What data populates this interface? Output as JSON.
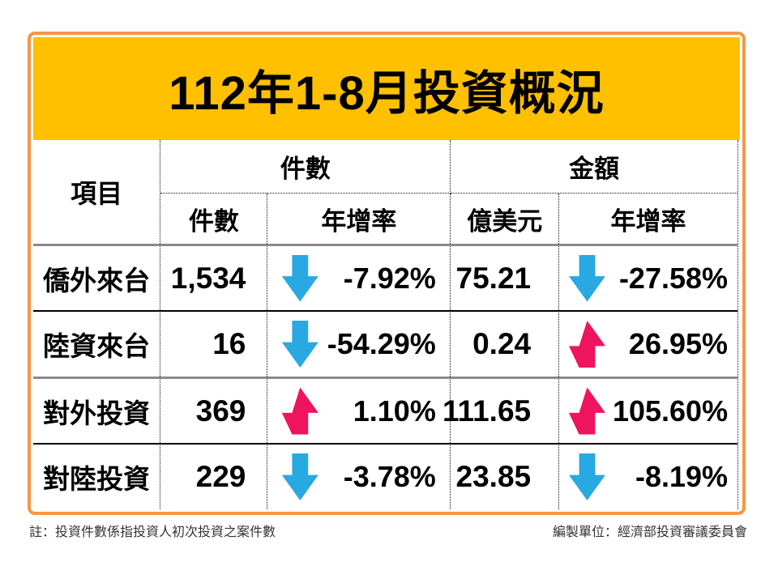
{
  "title": "112年1-8月投資概況",
  "colors": {
    "banner_gold": "#FFC000",
    "frame_orange": "#F79646",
    "arrow_up_pink": "#EF145E",
    "arrow_down_blue": "#29A9E1",
    "separator_gray": "#8A8A8A"
  },
  "table": {
    "item_header": "項目",
    "group_headers": {
      "count": "件數",
      "amount": "金額"
    },
    "sub_headers": {
      "count": "件數",
      "count_yoy": "年增率",
      "amount_unit": "億美元",
      "amount_yoy": "年增率"
    },
    "rows": [
      {
        "item": "僑外來台",
        "count": "1,534",
        "count_trend": "down",
        "count_yoy": "-7.92%",
        "amount": "75.21",
        "amount_trend": "down",
        "amount_yoy": "-27.58%"
      },
      {
        "item": "陸資來台",
        "count": "16",
        "count_trend": "down",
        "count_yoy": "-54.29%",
        "amount": "0.24",
        "amount_trend": "up",
        "amount_yoy": "26.95%"
      },
      {
        "item": "對外投資",
        "count": "369",
        "count_trend": "up",
        "count_yoy": "1.10%",
        "amount": "111.65",
        "amount_trend": "up",
        "amount_yoy": "105.60%"
      },
      {
        "item": "對陸投資",
        "count": "229",
        "count_trend": "down",
        "count_yoy": "-3.78%",
        "amount": "23.85",
        "amount_trend": "down",
        "amount_yoy": "-8.19%"
      }
    ]
  },
  "footer": {
    "note": "註：投資件數係指投資人初次投資之案件數",
    "source": "編製單位：經濟部投資審議委員會"
  },
  "chart_data": {
    "type": "table",
    "title": "112年1-8月投資概況",
    "columns": [
      "項目",
      "件數",
      "件數年增率(%)",
      "金額(億美元)",
      "金額年增率(%)"
    ],
    "rows": [
      [
        "僑外來台",
        1534,
        -7.92,
        75.21,
        -27.58
      ],
      [
        "陸資來台",
        16,
        -54.29,
        0.24,
        26.95
      ],
      [
        "對外投資",
        369,
        1.1,
        111.65,
        105.6
      ],
      [
        "對陸投資",
        229,
        -3.78,
        23.85,
        -8.19
      ]
    ]
  }
}
